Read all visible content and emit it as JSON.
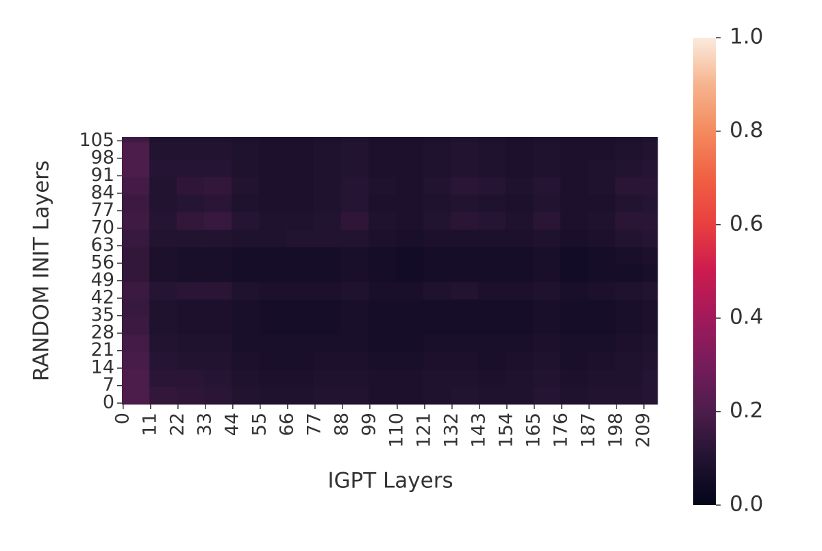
{
  "chart_data": {
    "type": "heatmap",
    "xlabel": "IGPT Layers",
    "ylabel": "RANDOM INIT Layers",
    "x": [
      0,
      11,
      22,
      33,
      44,
      55,
      66,
      77,
      88,
      99,
      110,
      121,
      132,
      143,
      154,
      165,
      176,
      187,
      198,
      209
    ],
    "y": [
      0,
      7,
      14,
      21,
      28,
      35,
      42,
      49,
      56,
      63,
      70,
      77,
      84,
      91,
      98,
      105
    ],
    "xlim": [
      -0.5,
      214.5
    ],
    "ylim": [
      -0.5,
      106.5
    ],
    "xticks": [
      0,
      11,
      22,
      33,
      44,
      55,
      66,
      77,
      88,
      99,
      110,
      121,
      132,
      143,
      154,
      165,
      176,
      187,
      198,
      209
    ],
    "yticks": [
      0,
      7,
      14,
      21,
      28,
      35,
      42,
      49,
      56,
      63,
      70,
      77,
      84,
      91,
      98,
      105
    ],
    "values": [
      [
        0.2,
        0.14,
        0.13,
        0.12,
        0.1,
        0.09,
        0.09,
        0.1,
        0.1,
        0.08,
        0.08,
        0.09,
        0.1,
        0.09,
        0.09,
        0.11,
        0.09,
        0.1,
        0.1,
        0.11
      ],
      [
        0.2,
        0.12,
        0.12,
        0.11,
        0.09,
        0.08,
        0.08,
        0.09,
        0.09,
        0.08,
        0.08,
        0.09,
        0.09,
        0.08,
        0.09,
        0.1,
        0.08,
        0.09,
        0.09,
        0.11
      ],
      [
        0.19,
        0.11,
        0.1,
        0.1,
        0.08,
        0.07,
        0.07,
        0.08,
        0.08,
        0.07,
        0.07,
        0.08,
        0.08,
        0.07,
        0.08,
        0.09,
        0.07,
        0.08,
        0.09,
        0.1
      ],
      [
        0.18,
        0.1,
        0.09,
        0.09,
        0.07,
        0.07,
        0.07,
        0.07,
        0.07,
        0.06,
        0.06,
        0.07,
        0.07,
        0.07,
        0.07,
        0.08,
        0.07,
        0.07,
        0.08,
        0.09
      ],
      [
        0.16,
        0.09,
        0.08,
        0.08,
        0.07,
        0.06,
        0.06,
        0.06,
        0.07,
        0.06,
        0.06,
        0.06,
        0.06,
        0.06,
        0.06,
        0.07,
        0.06,
        0.06,
        0.07,
        0.08
      ],
      [
        0.15,
        0.09,
        0.08,
        0.08,
        0.07,
        0.06,
        0.06,
        0.06,
        0.07,
        0.06,
        0.06,
        0.06,
        0.06,
        0.06,
        0.06,
        0.07,
        0.06,
        0.06,
        0.07,
        0.08
      ],
      [
        0.16,
        0.11,
        0.12,
        0.12,
        0.09,
        0.08,
        0.08,
        0.08,
        0.09,
        0.07,
        0.07,
        0.09,
        0.1,
        0.08,
        0.08,
        0.09,
        0.07,
        0.08,
        0.09,
        0.1
      ],
      [
        0.14,
        0.08,
        0.07,
        0.07,
        0.06,
        0.06,
        0.06,
        0.06,
        0.07,
        0.06,
        0.05,
        0.06,
        0.06,
        0.06,
        0.06,
        0.07,
        0.05,
        0.06,
        0.06,
        0.07
      ],
      [
        0.14,
        0.08,
        0.07,
        0.07,
        0.06,
        0.06,
        0.06,
        0.06,
        0.07,
        0.06,
        0.05,
        0.06,
        0.06,
        0.06,
        0.06,
        0.07,
        0.05,
        0.06,
        0.07,
        0.08
      ],
      [
        0.15,
        0.1,
        0.1,
        0.1,
        0.09,
        0.09,
        0.1,
        0.1,
        0.1,
        0.08,
        0.07,
        0.08,
        0.08,
        0.08,
        0.08,
        0.09,
        0.07,
        0.08,
        0.1,
        0.11
      ],
      [
        0.17,
        0.11,
        0.14,
        0.15,
        0.11,
        0.09,
        0.09,
        0.1,
        0.13,
        0.09,
        0.08,
        0.1,
        0.12,
        0.11,
        0.09,
        0.12,
        0.08,
        0.09,
        0.12,
        0.12
      ],
      [
        0.16,
        0.1,
        0.11,
        0.12,
        0.09,
        0.08,
        0.08,
        0.09,
        0.11,
        0.08,
        0.08,
        0.09,
        0.1,
        0.09,
        0.08,
        0.1,
        0.08,
        0.08,
        0.1,
        0.11
      ],
      [
        0.18,
        0.1,
        0.13,
        0.14,
        0.1,
        0.08,
        0.08,
        0.09,
        0.11,
        0.09,
        0.08,
        0.1,
        0.12,
        0.11,
        0.09,
        0.11,
        0.08,
        0.09,
        0.12,
        0.12
      ],
      [
        0.2,
        0.11,
        0.11,
        0.11,
        0.09,
        0.08,
        0.08,
        0.09,
        0.1,
        0.08,
        0.08,
        0.09,
        0.1,
        0.09,
        0.08,
        0.09,
        0.08,
        0.09,
        0.1,
        0.11
      ],
      [
        0.2,
        0.1,
        0.1,
        0.1,
        0.09,
        0.08,
        0.08,
        0.09,
        0.1,
        0.08,
        0.08,
        0.09,
        0.1,
        0.09,
        0.08,
        0.09,
        0.08,
        0.08,
        0.09,
        0.1
      ],
      [
        0.17,
        0.09,
        0.09,
        0.09,
        0.08,
        0.07,
        0.07,
        0.08,
        0.09,
        0.07,
        0.07,
        0.08,
        0.09,
        0.08,
        0.07,
        0.08,
        0.07,
        0.07,
        0.08,
        0.09
      ]
    ],
    "colorbar": {
      "lim": [
        0,
        1
      ],
      "ticks": [
        {
          "value": 0,
          "label": "0.0"
        },
        {
          "value": 0.2,
          "label": "0.2"
        },
        {
          "value": 0.4,
          "label": "0.4"
        },
        {
          "value": 0.6,
          "label": "0.6"
        },
        {
          "value": 0.8,
          "label": "0.8"
        },
        {
          "value": 1,
          "label": "1.0"
        }
      ]
    }
  }
}
